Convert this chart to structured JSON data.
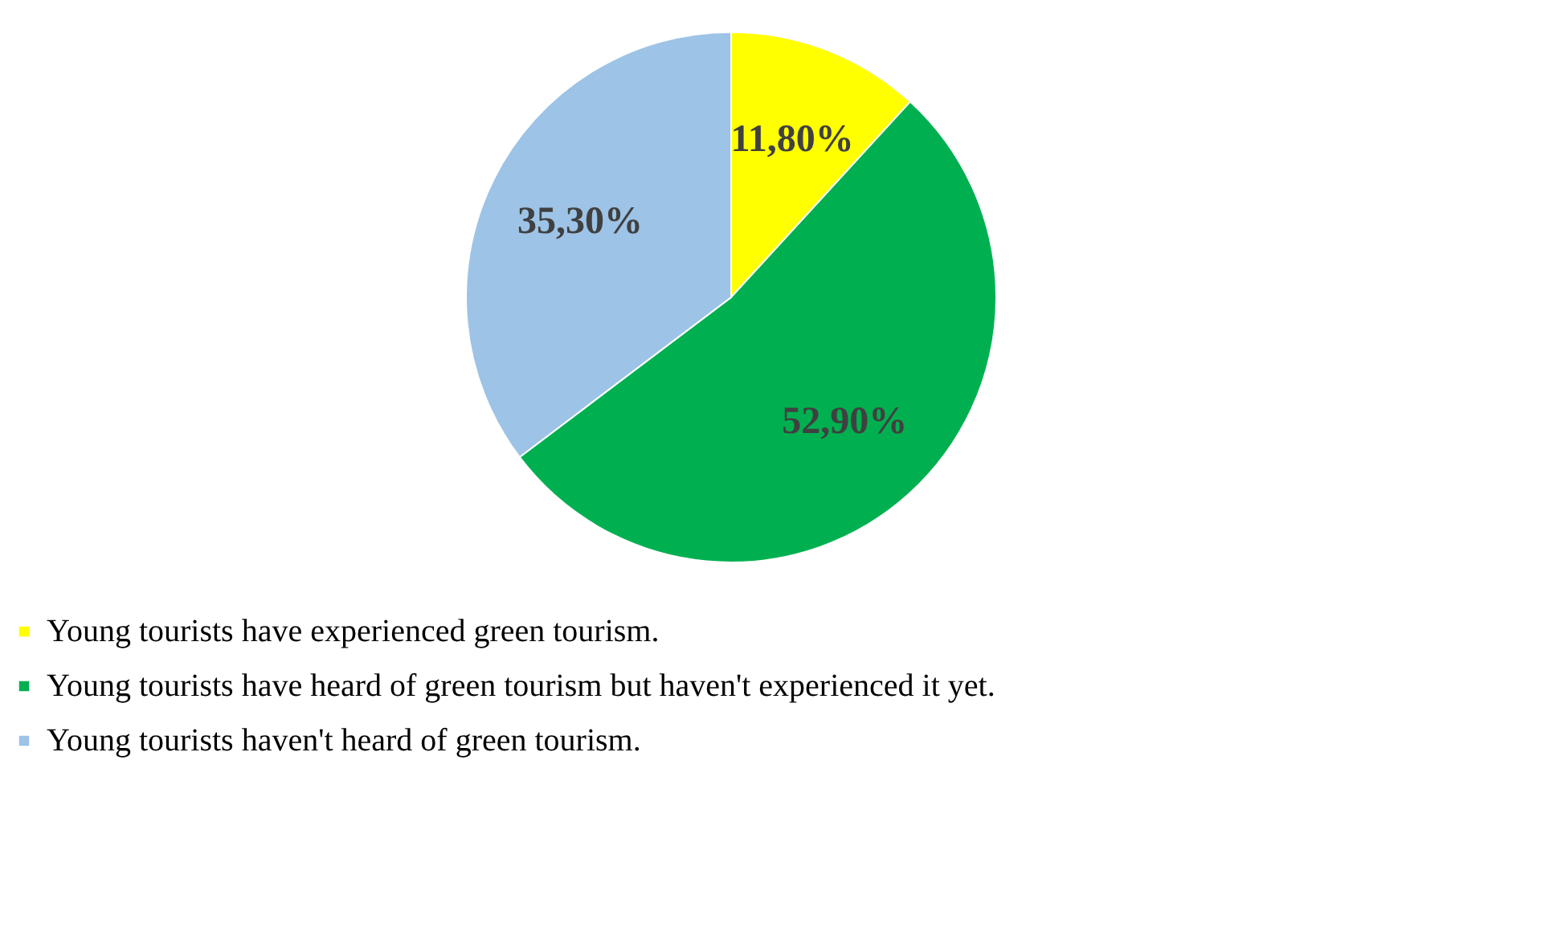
{
  "chart_data": {
    "type": "pie",
    "categories": [
      "Young tourists have experienced green tourism.",
      "Young tourists have heard of green tourism but haven't experienced it yet.",
      "Young tourists haven't heard of green tourism."
    ],
    "values": [
      11.8,
      52.9,
      35.3
    ],
    "colors": [
      "#ffff00",
      "#00b050",
      "#9dc3e6"
    ],
    "value_labels": [
      "11,80%",
      "52,90%",
      "35,30%"
    ],
    "legend": "bottom"
  }
}
